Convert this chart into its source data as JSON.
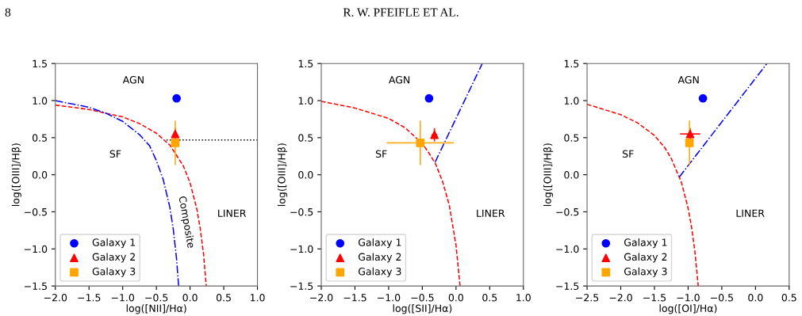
{
  "chart_data": [
    {
      "type": "scatter",
      "xlabel": "log([NII]/Hα)",
      "ylabel": "log([OIII]/Hβ)",
      "xlim": [
        -2.0,
        1.0
      ],
      "ylim": [
        -1.5,
        1.5
      ],
      "xticks": [
        {
          "value": -2.0,
          "label": "−2.0"
        },
        {
          "value": -1.5,
          "label": "−1.5"
        },
        {
          "value": -1.0,
          "label": "−1.0"
        },
        {
          "value": -0.5,
          "label": "−0.5"
        },
        {
          "value": 0.0,
          "label": "0.0"
        },
        {
          "value": 0.5,
          "label": "0.5"
        },
        {
          "value": 1.0,
          "label": "1.0"
        }
      ],
      "yticks": [
        {
          "value": -1.5,
          "label": "−1.5"
        },
        {
          "value": -1.0,
          "label": "−1.0"
        },
        {
          "value": -0.5,
          "label": "−0.5"
        },
        {
          "value": 0.0,
          "label": "0.0"
        },
        {
          "value": 0.5,
          "label": "0.5"
        },
        {
          "value": 1.0,
          "label": "1.0"
        },
        {
          "value": 1.5,
          "label": "1.5"
        }
      ],
      "grid": false,
      "legend": "bottom left",
      "annotations": [
        "8",
        "R. W. PFEIFLE ET AL.",
        "AGN",
        "SF",
        "LINER",
        "Composite"
      ],
      "series": [
        {
          "type": "line",
          "color": "#ff0000",
          "line_style": "dashed",
          "x": [
            -2.0,
            -1.5,
            -1.0,
            -0.75,
            -0.5,
            -0.3,
            -0.1,
            0.0,
            0.1,
            0.15,
            0.2,
            0.24
          ],
          "values": [
            0.94,
            0.88,
            0.78,
            0.69,
            0.56,
            0.4,
            0.12,
            -0.11,
            -0.46,
            -0.72,
            -1.07,
            -1.5
          ]
        },
        {
          "type": "line",
          "color": "#0000ff",
          "line_style": "dashdot",
          "x": [
            -2.0,
            -1.5,
            -1.25,
            -1.0,
            -0.75,
            -0.6,
            -0.5,
            -0.4,
            -0.3,
            -0.25,
            -0.2,
            -0.17
          ],
          "values": [
            1.0,
            0.91,
            0.83,
            0.72,
            0.54,
            0.39,
            0.19,
            -0.06,
            -0.44,
            -0.73,
            -1.14,
            -1.5
          ]
        },
        {
          "type": "line",
          "color": "#000000",
          "line_style": "dotted",
          "x": [
            -0.35,
            1.0
          ],
          "values": [
            0.47,
            0.47
          ]
        },
        {
          "name": "Galaxy 1",
          "marker": "circle",
          "color": "#0000ff",
          "x": [
            -0.2
          ],
          "values": [
            1.03
          ]
        },
        {
          "name": "Galaxy 2",
          "marker": "triangle",
          "color": "#ff0000",
          "x": [
            -0.22
          ],
          "values": [
            0.55
          ],
          "errors": [
            0.08
          ]
        },
        {
          "name": "Galaxy 3",
          "marker": "square",
          "color": "#ffa500",
          "x": [
            -0.22
          ],
          "values": [
            0.43
          ],
          "errors": [
            0.3
          ]
        }
      ]
    },
    {
      "type": "scatter",
      "xlabel": "log([SII]/Hα)",
      "ylabel": "log([OIII]/Hβ)",
      "xlim": [
        -2.0,
        1.0
      ],
      "ylim": [
        -1.5,
        1.5
      ],
      "xticks": [
        {
          "value": -2.0,
          "label": "−2.0"
        },
        {
          "value": -1.5,
          "label": "−1.5"
        },
        {
          "value": -1.0,
          "label": "−1.0"
        },
        {
          "value": -0.5,
          "label": "−0.5"
        },
        {
          "value": 0.0,
          "label": "0.0"
        },
        {
          "value": 0.5,
          "label": "0.5"
        },
        {
          "value": 1.0,
          "label": "1.0"
        }
      ],
      "yticks": [
        {
          "value": -1.5,
          "label": "−1.5"
        },
        {
          "value": -1.0,
          "label": "−1.0"
        },
        {
          "value": -0.5,
          "label": "−0.5"
        },
        {
          "value": 0.0,
          "label": "0.0"
        },
        {
          "value": 0.5,
          "label": "0.5"
        },
        {
          "value": 1.0,
          "label": "1.0"
        },
        {
          "value": 1.5,
          "label": "1.5"
        }
      ],
      "grid": false,
      "legend": "bottom left",
      "annotations": [
        "AGN",
        "SF",
        "LINER"
      ],
      "series": [
        {
          "type": "line",
          "color": "#ff0000",
          "line_style": "dashed",
          "x": [
            -2.0,
            -1.5,
            -1.0,
            -0.75,
            -0.5,
            -0.4,
            -0.3,
            -0.2,
            -0.1,
            0.0,
            0.06
          ],
          "values": [
            0.99,
            0.9,
            0.76,
            0.63,
            0.42,
            0.29,
            0.14,
            -0.09,
            -0.41,
            -0.95,
            -1.5
          ]
        },
        {
          "type": "line",
          "color": "#0000ff",
          "line_style": "dashdot",
          "x": [
            -0.31,
            0.39
          ],
          "values": [
            0.17,
            1.5
          ]
        },
        {
          "name": "Galaxy 1",
          "marker": "circle",
          "color": "#0000ff",
          "x": [
            -0.4
          ],
          "values": [
            1.03
          ]
        },
        {
          "name": "Galaxy 2",
          "marker": "triangle",
          "color": "#ff0000",
          "x": [
            -0.32
          ],
          "values": [
            0.54
          ],
          "errors": [
            0.09
          ],
          "xerrors": [
            0.04
          ]
        },
        {
          "name": "Galaxy 3",
          "marker": "square",
          "color": "#ffa500",
          "x": [
            -0.53
          ],
          "values": [
            0.43
          ],
          "errors": [
            0.3
          ],
          "xerrors": [
            0.5
          ]
        }
      ]
    },
    {
      "type": "scatter",
      "xlabel": "log([OI]/Hα)",
      "ylabel": "log([OIII]/Hβ)",
      "xlim": [
        -2.5,
        0.5
      ],
      "ylim": [
        -1.5,
        1.5
      ],
      "xticks": [
        {
          "value": -2.5,
          "label": "−2.5"
        },
        {
          "value": -2.0,
          "label": "−2.0"
        },
        {
          "value": -1.5,
          "label": "−1.5"
        },
        {
          "value": -1.0,
          "label": "−1.0"
        },
        {
          "value": -0.5,
          "label": "−0.5"
        },
        {
          "value": 0.0,
          "label": "0.0"
        },
        {
          "value": 0.5,
          "label": "0.5"
        }
      ],
      "yticks": [
        {
          "value": -1.5,
          "label": "−1.5"
        },
        {
          "value": -1.0,
          "label": "−1.0"
        },
        {
          "value": -0.5,
          "label": "−0.5"
        },
        {
          "value": 0.0,
          "label": "0.0"
        },
        {
          "value": 0.5,
          "label": "0.5"
        },
        {
          "value": 1.0,
          "label": "1.0"
        },
        {
          "value": 1.5,
          "label": "1.5"
        }
      ],
      "grid": false,
      "legend": "bottom left",
      "annotations": [
        "AGN",
        "SF",
        "LINER"
      ],
      "series": [
        {
          "type": "line",
          "color": "#ff0000",
          "line_style": "dashed",
          "x": [
            -2.5,
            -2.0,
            -1.75,
            -1.5,
            -1.35,
            -1.25,
            -1.1,
            -1.0,
            -0.95,
            -0.9,
            -0.85
          ],
          "values": [
            0.95,
            0.81,
            0.7,
            0.53,
            0.37,
            0.22,
            -0.1,
            -0.45,
            -0.7,
            -1.03,
            -1.5
          ]
        },
        {
          "type": "line",
          "color": "#0000ff",
          "line_style": "dashdot",
          "x": [
            -1.13,
            0.17
          ],
          "values": [
            -0.03,
            1.5
          ]
        },
        {
          "name": "Galaxy 1",
          "marker": "circle",
          "color": "#0000ff",
          "x": [
            -0.78
          ],
          "values": [
            1.03
          ]
        },
        {
          "name": "Galaxy 2",
          "marker": "triangle",
          "color": "#ff0000",
          "x": [
            -0.97
          ],
          "values": [
            0.55
          ],
          "errors": [
            0.08
          ],
          "xerrors": [
            0.15
          ]
        },
        {
          "name": "Galaxy 3",
          "marker": "square",
          "color": "#ffa500",
          "x": [
            -0.98
          ],
          "values": [
            0.43
          ],
          "errors": [
            0.3
          ],
          "xerrors": [
            0.05
          ]
        }
      ]
    }
  ]
}
